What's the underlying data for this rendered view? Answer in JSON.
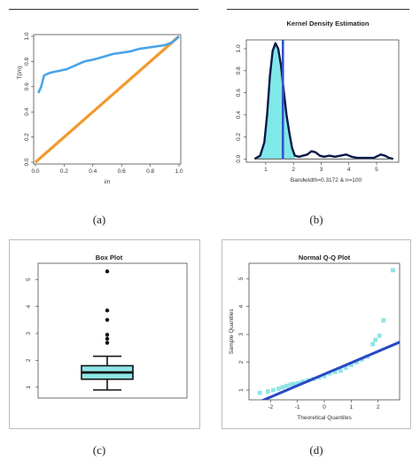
{
  "captions": {
    "a": "(a)",
    "b": "(b)",
    "c": "(c)",
    "d": "(d)"
  },
  "chart_data": [
    {
      "id": "a",
      "type": "line",
      "title": "",
      "xlabel": "i/n",
      "ylabel": "T(i/n)",
      "xlim": [
        0,
        1
      ],
      "ylim": [
        0,
        1
      ],
      "xticks": [
        "0.0",
        "0.2",
        "0.4",
        "0.6",
        "0.8",
        "1.0"
      ],
      "yticks": [
        "0.0",
        "0.2",
        "0.4",
        "0.6",
        "0.8",
        "1.0"
      ],
      "series": [
        {
          "color": "#4aa3e8",
          "x": [
            0.02,
            0.04,
            0.06,
            0.08,
            0.1,
            0.14,
            0.18,
            0.22,
            0.26,
            0.3,
            0.34,
            0.38,
            0.42,
            0.48,
            0.54,
            0.6,
            0.66,
            0.72,
            0.78,
            0.84,
            0.9,
            0.95,
            1.0
          ],
          "y": [
            0.55,
            0.6,
            0.69,
            0.7,
            0.71,
            0.72,
            0.73,
            0.74,
            0.76,
            0.78,
            0.8,
            0.81,
            0.82,
            0.84,
            0.86,
            0.87,
            0.88,
            0.9,
            0.91,
            0.92,
            0.93,
            0.95,
            1.0
          ]
        },
        {
          "color": "#f29a2e",
          "x": [
            0,
            1
          ],
          "y": [
            0,
            1
          ]
        }
      ],
      "grid": false
    },
    {
      "id": "b",
      "type": "area",
      "title": "Kernel Density Estimation",
      "xlabel": "Bandwidth=0.3172 & n=100",
      "ylabel": "",
      "xlim": [
        0.3,
        5.8
      ],
      "ylim": [
        -0.03,
        1.08
      ],
      "xticks": [
        "1",
        "2",
        "3",
        "4",
        "5"
      ],
      "yticks": [
        "0.0",
        "0.2",
        "0.4",
        "0.6",
        "0.8",
        "1.0"
      ],
      "density": {
        "x": [
          0.6,
          0.8,
          0.95,
          1.05,
          1.15,
          1.25,
          1.35,
          1.45,
          1.55,
          1.65,
          1.75,
          1.85,
          1.95,
          2.05,
          2.2,
          2.35,
          2.5,
          2.65,
          2.8,
          2.95,
          3.1,
          3.3,
          3.5,
          3.7,
          3.9,
          4.1,
          4.3,
          4.6,
          4.9,
          5.15,
          5.3,
          5.45,
          5.6
        ],
        "y": [
          0.0,
          0.03,
          0.15,
          0.4,
          0.75,
          0.98,
          1.05,
          1.0,
          0.85,
          0.62,
          0.4,
          0.24,
          0.1,
          0.03,
          0.02,
          0.03,
          0.04,
          0.07,
          0.06,
          0.03,
          0.02,
          0.03,
          0.02,
          0.03,
          0.04,
          0.02,
          0.01,
          0.01,
          0.01,
          0.04,
          0.03,
          0.01,
          0.0
        ]
      },
      "vline": 1.62,
      "fill": "#7fe8e8",
      "line_color": "#0a1a4a",
      "vline_color": "#3553c8"
    },
    {
      "id": "c",
      "type": "box",
      "title": "Box Plot",
      "ylim": [
        0.6,
        5.6
      ],
      "yticks": [
        "1",
        "2",
        "3",
        "4",
        "5"
      ],
      "box": {
        "whisker_low": 0.9,
        "q1": 1.3,
        "median": 1.55,
        "q3": 1.8,
        "whisker_high": 2.15
      },
      "outliers": [
        2.65,
        2.8,
        2.95,
        3.5,
        3.85,
        5.3
      ],
      "fill": "#8fe6e6"
    },
    {
      "id": "d",
      "type": "scatter",
      "title": "Normal Q-Q Plot",
      "xlabel": "Theoretical Quantiles",
      "ylabel": "Sample Quantiles",
      "xlim": [
        -2.8,
        2.8
      ],
      "ylim": [
        0.65,
        5.55
      ],
      "xticks": [
        "-2",
        "-1",
        "0",
        "1",
        "2"
      ],
      "yticks": [
        "1",
        "2",
        "3",
        "4",
        "5"
      ],
      "points": {
        "x": [
          -2.4,
          -2.1,
          -1.9,
          -1.7,
          -1.55,
          -1.4,
          -1.25,
          -1.1,
          -0.95,
          -0.8,
          -0.6,
          -0.4,
          -0.2,
          0.0,
          0.2,
          0.4,
          0.6,
          0.8,
          1.0,
          1.2,
          1.4,
          1.6,
          1.8,
          1.9,
          2.05,
          2.2,
          2.55
        ],
        "y": [
          0.9,
          0.95,
          1.0,
          1.05,
          1.1,
          1.15,
          1.2,
          1.22,
          1.25,
          1.3,
          1.35,
          1.4,
          1.45,
          1.5,
          1.6,
          1.65,
          1.7,
          1.8,
          1.9,
          2.0,
          2.1,
          2.2,
          2.65,
          2.8,
          2.95,
          3.5,
          5.3
        ]
      },
      "line": {
        "x": [
          -2.8,
          2.8
        ],
        "y": [
          0.42,
          2.72
        ]
      },
      "point_color": "#8fe3e8",
      "line_color": "#2a48c4"
    }
  ]
}
